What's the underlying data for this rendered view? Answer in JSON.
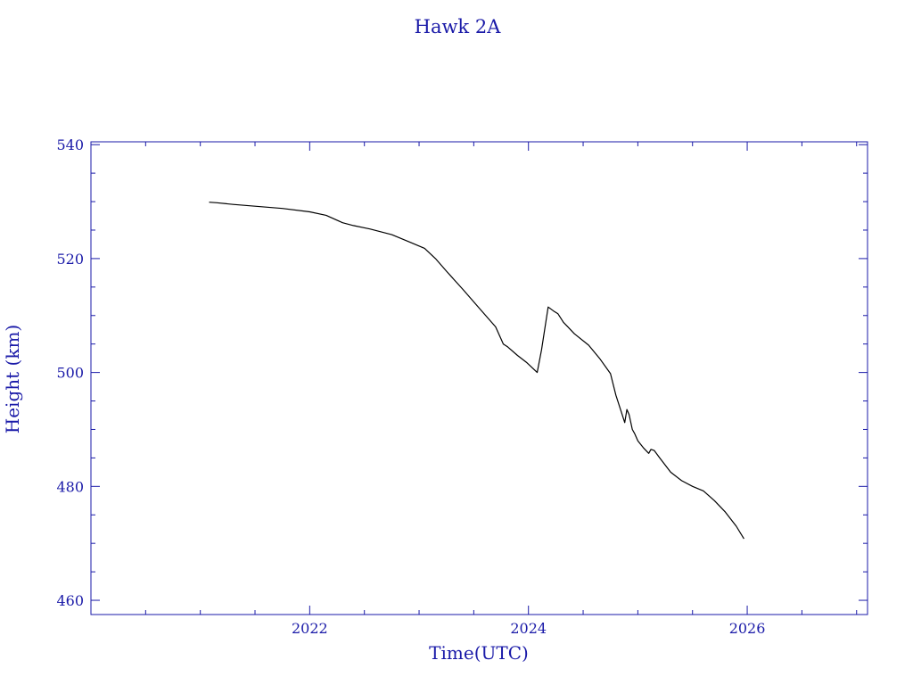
{
  "chart_data": {
    "type": "line",
    "title": "Hawk 2A",
    "xlabel": "Time(UTC)",
    "ylabel": "Height (km)",
    "x_unit": "year",
    "xlim": [
      2020.0,
      2027.1
    ],
    "ylim": [
      457.5,
      540.5
    ],
    "xticks": [
      2022,
      2024,
      2026
    ],
    "xtick_labels": [
      "2022",
      "2024",
      "2026"
    ],
    "x_minor_step": 0.5,
    "yticks": [
      460,
      480,
      500,
      520,
      540
    ],
    "ytick_labels": [
      "460",
      "480",
      "500",
      "520",
      "540"
    ],
    "y_minor_step": 5,
    "grid": false,
    "colors": {
      "axis": "#1a1aa8",
      "text": "#1a1aa8",
      "line": "#000000",
      "background": "#ffffff"
    },
    "series": [
      {
        "color": "#000000",
        "x": [
          2021.08,
          2021.15,
          2021.3,
          2021.5,
          2021.75,
          2022.0,
          2022.15,
          2022.3,
          2022.4,
          2022.55,
          2022.75,
          2022.9,
          2023.05,
          2023.15,
          2023.25,
          2023.4,
          2023.55,
          2023.7,
          2023.77,
          2023.81,
          2023.9,
          2023.98,
          2024.08,
          2024.12,
          2024.18,
          2024.23,
          2024.27,
          2024.32,
          2024.42,
          2024.55,
          2024.65,
          2024.75,
          2024.8,
          2024.85,
          2024.88,
          2024.9,
          2024.92,
          2024.95,
          2024.97,
          2025.0,
          2025.05,
          2025.1,
          2025.12,
          2025.15,
          2025.2,
          2025.3,
          2025.4,
          2025.5,
          2025.6,
          2025.7,
          2025.8,
          2025.9,
          2025.97
        ],
        "y": [
          529.9,
          529.8,
          529.5,
          529.2,
          528.8,
          528.2,
          527.6,
          526.3,
          525.8,
          525.2,
          524.2,
          523.0,
          521.8,
          520.0,
          517.8,
          514.6,
          511.3,
          508.0,
          505.0,
          504.5,
          503.0,
          501.8,
          500.0,
          504.0,
          511.5,
          510.8,
          510.3,
          508.8,
          506.8,
          504.8,
          502.5,
          499.8,
          496.0,
          493.0,
          491.2,
          493.5,
          492.6,
          490.0,
          489.3,
          488.0,
          486.8,
          485.8,
          486.5,
          486.3,
          485.0,
          482.5,
          481.0,
          480.0,
          479.2,
          477.5,
          475.5,
          473.0,
          470.8
        ]
      }
    ]
  }
}
